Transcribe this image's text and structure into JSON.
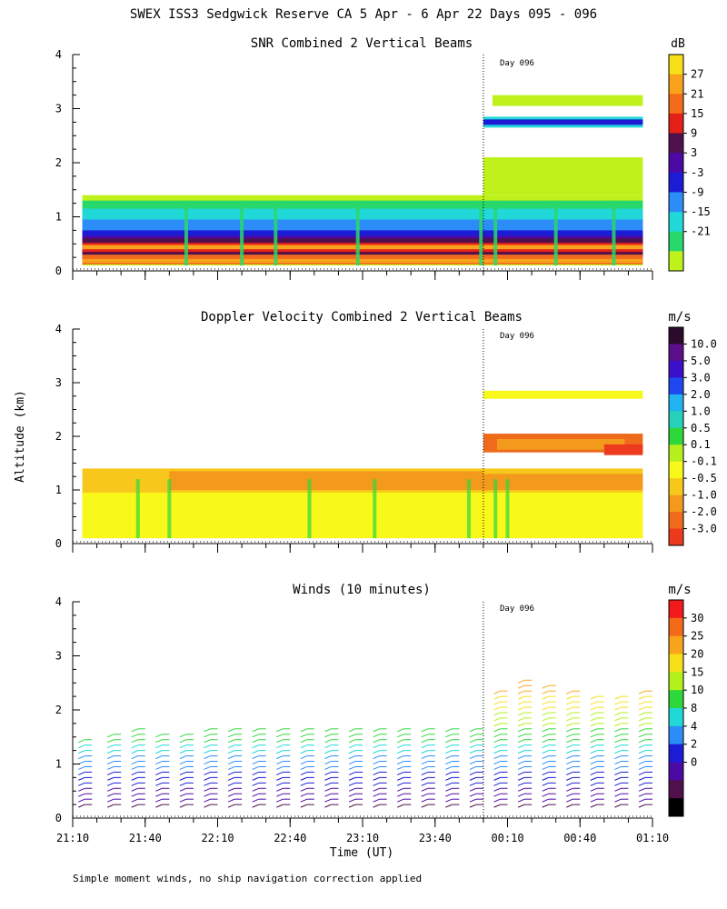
{
  "figure": {
    "main_title": "SWEX ISS3 Sedgwick Reserve CA   5 Apr -  6 Apr 22 Days 095 - 096",
    "y_label": "Altitude (km)",
    "x_label": "Time (UT)",
    "footnote": "Simple moment winds, no ship navigation correction applied",
    "day_marker_label": "Day 096",
    "x_ticks": [
      "21:10",
      "21:40",
      "22:10",
      "22:40",
      "23:10",
      "23:40",
      "00:10",
      "00:40",
      "01:10"
    ],
    "y_ticks": [
      "0",
      "1",
      "2",
      "3",
      "4"
    ]
  },
  "chart_data": [
    {
      "type": "heatmap",
      "title": "SNR Combined 2 Vertical Beams",
      "unit": "dB",
      "x_range_minutes_since_2110": [
        0,
        240
      ],
      "ylim": [
        0,
        4
      ],
      "day_boundary_minutes": 170,
      "colorbar_ticks": [
        "27",
        "21",
        "15",
        "9",
        "3",
        "-3",
        "-9",
        "-15",
        "-21"
      ],
      "colorbar_colors": [
        "#f7e018",
        "#f8a21d",
        "#f36c1c",
        "#e32119",
        "#50104b",
        "#4b0aa6",
        "#1c1cd6",
        "#2c8cf8",
        "#21d8d8",
        "#29d86a",
        "#bef21a"
      ],
      "description_bands": [
        {
          "alt_km": [
            0.1,
            0.3
          ],
          "level": "high"
        },
        {
          "alt_km": [
            0.3,
            0.6
          ],
          "level": "very_high"
        },
        {
          "alt_km": [
            0.6,
            1.4
          ],
          "level": "low"
        },
        {
          "alt_km": [
            2.7,
            2.8
          ],
          "level": "medium_after_day_boundary"
        }
      ]
    },
    {
      "type": "heatmap",
      "title": "Doppler Velocity Combined 2 Vertical Beams",
      "unit": "m/s",
      "x_range_minutes_since_2110": [
        0,
        240
      ],
      "ylim": [
        0,
        4
      ],
      "day_boundary_minutes": 170,
      "colorbar_ticks": [
        "10.0",
        "5.0",
        "3.0",
        "2.0",
        "1.0",
        "0.5",
        "0.1",
        "-0.1",
        "-0.5",
        "-1.0",
        "-2.0",
        "-3.0"
      ],
      "colorbar_colors": [
        "#2b0a2b",
        "#5c0f8a",
        "#3a10c8",
        "#1f48f0",
        "#22b3f0",
        "#27d0b8",
        "#2ed83a",
        "#b6ef1e",
        "#f8f81a",
        "#f7c81b",
        "#f39a1c",
        "#f06a1c",
        "#ec3a1c"
      ],
      "description_bands": [
        {
          "alt_km": [
            0.1,
            1.4
          ],
          "level": "near_zero"
        },
        {
          "alt_km": [
            1.7,
            2.0
          ],
          "level": "negative_after_day_boundary"
        },
        {
          "alt_km": [
            2.7,
            2.8
          ],
          "level": "near_zero_after_day_boundary"
        }
      ]
    },
    {
      "type": "scatter",
      "title": "Winds (10 minutes)",
      "unit": "m/s",
      "x_range_minutes_since_2110": [
        0,
        240
      ],
      "ylim": [
        0,
        4
      ],
      "day_boundary_minutes": 170,
      "colorbar_ticks": [
        "30",
        "25",
        "20",
        "15",
        "10",
        "8",
        "4",
        "2",
        "0"
      ],
      "colorbar_colors": [
        "#f21a1a",
        "#f26a1a",
        "#f7a51c",
        "#f7e01a",
        "#b2f21a",
        "#2ed83a",
        "#21d8d8",
        "#2c8cf8",
        "#1c1cd6",
        "#4b0aa6",
        "#50104b",
        "#000000"
      ],
      "profile_times_minutes": [
        5,
        17,
        27,
        37,
        47,
        57,
        67,
        77,
        87,
        97,
        107,
        117,
        127,
        137,
        147,
        157,
        167,
        177,
        187,
        197,
        207,
        217,
        227,
        237
      ],
      "profile_top_km": [
        1.45,
        1.6,
        1.7,
        1.55,
        1.55,
        1.65,
        1.65,
        1.65,
        1.7,
        1.65,
        1.7,
        1.65,
        1.7,
        1.7,
        1.65,
        1.65,
        1.65,
        2.4,
        2.55,
        2.45,
        2.35,
        2.25,
        2.3,
        2.4
      ]
    }
  ]
}
